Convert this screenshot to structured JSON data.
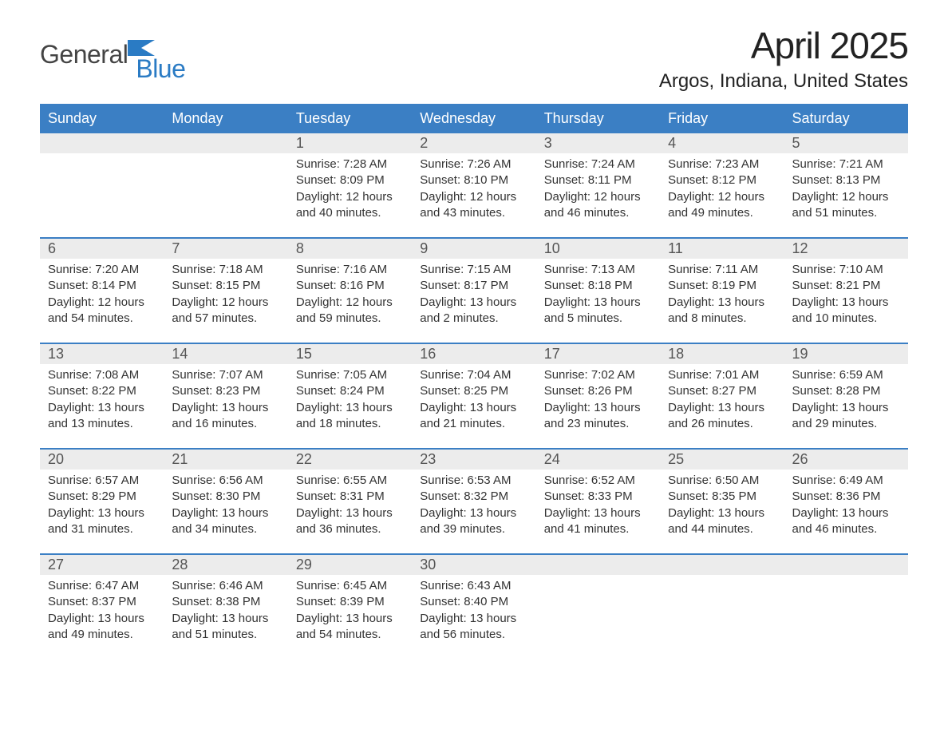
{
  "logo": {
    "text1": "General",
    "text2": "Blue",
    "accent_color": "#2a7bc4"
  },
  "title": "April 2025",
  "location": "Argos, Indiana, United States",
  "colors": {
    "header_bg": "#3b7fc4",
    "header_text": "#ffffff",
    "daynum_bg": "#ececec",
    "daynum_text": "#555555",
    "body_text": "#333333",
    "rule": "#3b7fc4",
    "page_bg": "#ffffff"
  },
  "day_labels": [
    "Sunday",
    "Monday",
    "Tuesday",
    "Wednesday",
    "Thursday",
    "Friday",
    "Saturday"
  ],
  "weeks": [
    [
      null,
      null,
      {
        "n": "1",
        "sunrise": "Sunrise: 7:28 AM",
        "sunset": "Sunset: 8:09 PM",
        "dl1": "Daylight: 12 hours",
        "dl2": "and 40 minutes."
      },
      {
        "n": "2",
        "sunrise": "Sunrise: 7:26 AM",
        "sunset": "Sunset: 8:10 PM",
        "dl1": "Daylight: 12 hours",
        "dl2": "and 43 minutes."
      },
      {
        "n": "3",
        "sunrise": "Sunrise: 7:24 AM",
        "sunset": "Sunset: 8:11 PM",
        "dl1": "Daylight: 12 hours",
        "dl2": "and 46 minutes."
      },
      {
        "n": "4",
        "sunrise": "Sunrise: 7:23 AM",
        "sunset": "Sunset: 8:12 PM",
        "dl1": "Daylight: 12 hours",
        "dl2": "and 49 minutes."
      },
      {
        "n": "5",
        "sunrise": "Sunrise: 7:21 AM",
        "sunset": "Sunset: 8:13 PM",
        "dl1": "Daylight: 12 hours",
        "dl2": "and 51 minutes."
      }
    ],
    [
      {
        "n": "6",
        "sunrise": "Sunrise: 7:20 AM",
        "sunset": "Sunset: 8:14 PM",
        "dl1": "Daylight: 12 hours",
        "dl2": "and 54 minutes."
      },
      {
        "n": "7",
        "sunrise": "Sunrise: 7:18 AM",
        "sunset": "Sunset: 8:15 PM",
        "dl1": "Daylight: 12 hours",
        "dl2": "and 57 minutes."
      },
      {
        "n": "8",
        "sunrise": "Sunrise: 7:16 AM",
        "sunset": "Sunset: 8:16 PM",
        "dl1": "Daylight: 12 hours",
        "dl2": "and 59 minutes."
      },
      {
        "n": "9",
        "sunrise": "Sunrise: 7:15 AM",
        "sunset": "Sunset: 8:17 PM",
        "dl1": "Daylight: 13 hours",
        "dl2": "and 2 minutes."
      },
      {
        "n": "10",
        "sunrise": "Sunrise: 7:13 AM",
        "sunset": "Sunset: 8:18 PM",
        "dl1": "Daylight: 13 hours",
        "dl2": "and 5 minutes."
      },
      {
        "n": "11",
        "sunrise": "Sunrise: 7:11 AM",
        "sunset": "Sunset: 8:19 PM",
        "dl1": "Daylight: 13 hours",
        "dl2": "and 8 minutes."
      },
      {
        "n": "12",
        "sunrise": "Sunrise: 7:10 AM",
        "sunset": "Sunset: 8:21 PM",
        "dl1": "Daylight: 13 hours",
        "dl2": "and 10 minutes."
      }
    ],
    [
      {
        "n": "13",
        "sunrise": "Sunrise: 7:08 AM",
        "sunset": "Sunset: 8:22 PM",
        "dl1": "Daylight: 13 hours",
        "dl2": "and 13 minutes."
      },
      {
        "n": "14",
        "sunrise": "Sunrise: 7:07 AM",
        "sunset": "Sunset: 8:23 PM",
        "dl1": "Daylight: 13 hours",
        "dl2": "and 16 minutes."
      },
      {
        "n": "15",
        "sunrise": "Sunrise: 7:05 AM",
        "sunset": "Sunset: 8:24 PM",
        "dl1": "Daylight: 13 hours",
        "dl2": "and 18 minutes."
      },
      {
        "n": "16",
        "sunrise": "Sunrise: 7:04 AM",
        "sunset": "Sunset: 8:25 PM",
        "dl1": "Daylight: 13 hours",
        "dl2": "and 21 minutes."
      },
      {
        "n": "17",
        "sunrise": "Sunrise: 7:02 AM",
        "sunset": "Sunset: 8:26 PM",
        "dl1": "Daylight: 13 hours",
        "dl2": "and 23 minutes."
      },
      {
        "n": "18",
        "sunrise": "Sunrise: 7:01 AM",
        "sunset": "Sunset: 8:27 PM",
        "dl1": "Daylight: 13 hours",
        "dl2": "and 26 minutes."
      },
      {
        "n": "19",
        "sunrise": "Sunrise: 6:59 AM",
        "sunset": "Sunset: 8:28 PM",
        "dl1": "Daylight: 13 hours",
        "dl2": "and 29 minutes."
      }
    ],
    [
      {
        "n": "20",
        "sunrise": "Sunrise: 6:57 AM",
        "sunset": "Sunset: 8:29 PM",
        "dl1": "Daylight: 13 hours",
        "dl2": "and 31 minutes."
      },
      {
        "n": "21",
        "sunrise": "Sunrise: 6:56 AM",
        "sunset": "Sunset: 8:30 PM",
        "dl1": "Daylight: 13 hours",
        "dl2": "and 34 minutes."
      },
      {
        "n": "22",
        "sunrise": "Sunrise: 6:55 AM",
        "sunset": "Sunset: 8:31 PM",
        "dl1": "Daylight: 13 hours",
        "dl2": "and 36 minutes."
      },
      {
        "n": "23",
        "sunrise": "Sunrise: 6:53 AM",
        "sunset": "Sunset: 8:32 PM",
        "dl1": "Daylight: 13 hours",
        "dl2": "and 39 minutes."
      },
      {
        "n": "24",
        "sunrise": "Sunrise: 6:52 AM",
        "sunset": "Sunset: 8:33 PM",
        "dl1": "Daylight: 13 hours",
        "dl2": "and 41 minutes."
      },
      {
        "n": "25",
        "sunrise": "Sunrise: 6:50 AM",
        "sunset": "Sunset: 8:35 PM",
        "dl1": "Daylight: 13 hours",
        "dl2": "and 44 minutes."
      },
      {
        "n": "26",
        "sunrise": "Sunrise: 6:49 AM",
        "sunset": "Sunset: 8:36 PM",
        "dl1": "Daylight: 13 hours",
        "dl2": "and 46 minutes."
      }
    ],
    [
      {
        "n": "27",
        "sunrise": "Sunrise: 6:47 AM",
        "sunset": "Sunset: 8:37 PM",
        "dl1": "Daylight: 13 hours",
        "dl2": "and 49 minutes."
      },
      {
        "n": "28",
        "sunrise": "Sunrise: 6:46 AM",
        "sunset": "Sunset: 8:38 PM",
        "dl1": "Daylight: 13 hours",
        "dl2": "and 51 minutes."
      },
      {
        "n": "29",
        "sunrise": "Sunrise: 6:45 AM",
        "sunset": "Sunset: 8:39 PM",
        "dl1": "Daylight: 13 hours",
        "dl2": "and 54 minutes."
      },
      {
        "n": "30",
        "sunrise": "Sunrise: 6:43 AM",
        "sunset": "Sunset: 8:40 PM",
        "dl1": "Daylight: 13 hours",
        "dl2": "and 56 minutes."
      },
      null,
      null,
      null
    ]
  ]
}
